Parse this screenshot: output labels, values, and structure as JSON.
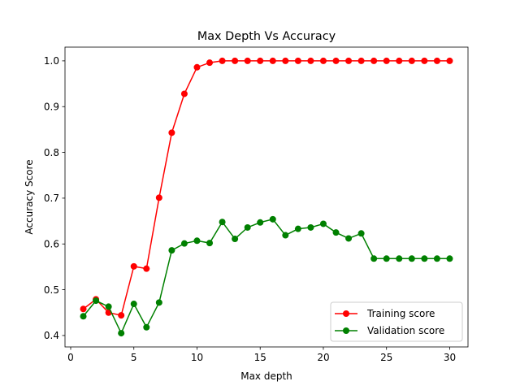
{
  "chart_data": {
    "type": "line",
    "title": "Max Depth Vs Accuracy",
    "xlabel": "Max depth",
    "ylabel": "Accuracy Score",
    "xlim": [
      -0.45,
      31.45
    ],
    "ylim": [
      0.375,
      1.03
    ],
    "xticks": [
      0,
      5,
      10,
      15,
      20,
      25,
      30
    ],
    "yticks": [
      0.4,
      0.5,
      0.6,
      0.7,
      0.8,
      0.9,
      1.0
    ],
    "ytick_labels": [
      "0.4",
      "0.5",
      "0.6",
      "0.7",
      "0.8",
      "0.9",
      "1.0"
    ],
    "grid": false,
    "legend_position": "lower right",
    "x": [
      1,
      2,
      3,
      4,
      5,
      6,
      7,
      8,
      9,
      10,
      11,
      12,
      13,
      14,
      15,
      16,
      17,
      18,
      19,
      20,
      21,
      22,
      23,
      24,
      25,
      26,
      27,
      28,
      29,
      30
    ],
    "series": [
      {
        "name": "Training score",
        "color": "#ff0000",
        "marker": "circle",
        "values": [
          0.458,
          0.479,
          0.45,
          0.444,
          0.551,
          0.546,
          0.701,
          0.843,
          0.928,
          0.986,
          0.996,
          1.0,
          1.0,
          1.0,
          1.0,
          1.0,
          1.0,
          1.0,
          1.0,
          1.0,
          1.0,
          1.0,
          1.0,
          1.0,
          1.0,
          1.0,
          1.0,
          1.0,
          1.0,
          1.0
        ]
      },
      {
        "name": "Validation score",
        "color": "#008000",
        "marker": "circle",
        "values": [
          0.442,
          0.476,
          0.463,
          0.405,
          0.469,
          0.418,
          0.472,
          0.586,
          0.601,
          0.607,
          0.602,
          0.648,
          0.611,
          0.636,
          0.647,
          0.654,
          0.619,
          0.633,
          0.636,
          0.644,
          0.625,
          0.612,
          0.623,
          0.568,
          0.568,
          0.568,
          0.568,
          0.568,
          0.568,
          0.568
        ]
      }
    ]
  }
}
